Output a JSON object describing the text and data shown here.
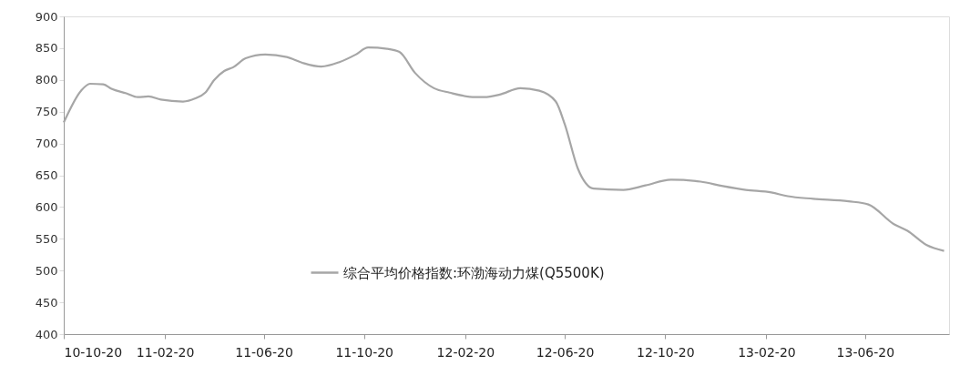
{
  "chart_data": {
    "type": "line",
    "x": [
      "2010-10-20",
      "2010-11-10",
      "2010-11-21",
      "2010-12-07",
      "2010-12-17",
      "2011-01-04",
      "2011-01-18",
      "2011-01-31",
      "2011-02-15",
      "2011-03-14",
      "2011-03-29",
      "2011-04-10",
      "2011-04-21",
      "2011-05-03",
      "2011-05-14",
      "2011-05-29",
      "2011-06-22",
      "2011-07-18",
      "2011-08-06",
      "2011-08-29",
      "2011-09-20",
      "2011-10-10",
      "2011-10-25",
      "2011-11-17",
      "2011-12-02",
      "2011-12-21",
      "2012-01-13",
      "2012-02-01",
      "2012-03-03",
      "2012-03-14",
      "2012-04-02",
      "2012-04-27",
      "2012-05-20",
      "2012-06-09",
      "2012-06-20",
      "2012-07-06",
      "2012-07-25",
      "2012-08-30",
      "2012-09-26",
      "2012-10-27",
      "2012-12-02",
      "2012-12-29",
      "2013-01-26",
      "2013-02-26",
      "2013-03-18",
      "2013-04-18",
      "2013-05-31",
      "2013-06-24",
      "2013-07-25",
      "2013-08-10",
      "2013-09-03",
      "2013-09-24"
    ],
    "series": [
      {
        "name": "综合平均价格指数:环渤海动力煤(Q5500K)",
        "color": "#a6a6a6",
        "values": [
          733,
          783,
          794,
          793,
          786,
          779,
          773,
          774,
          769,
          766,
          771,
          780,
          800,
          814,
          820,
          834,
          840,
          836,
          827,
          821,
          828,
          840,
          851,
          849,
          844,
          811,
          787,
          780,
          773,
          773,
          777,
          787,
          783,
          766,
          730,
          660,
          629,
          627,
          634,
          643,
          640,
          633,
          627,
          623,
          617,
          613,
          609,
          604,
          573,
          563,
          540,
          531
        ]
      }
    ],
    "xlim": [
      "2010-10-20",
      "2013-09-30"
    ],
    "xticks": [
      {
        "value": "2010-10-20",
        "label": "10-10-20"
      },
      {
        "value": "2011-02-20",
        "label": "11-02-20"
      },
      {
        "value": "2011-06-20",
        "label": "11-06-20"
      },
      {
        "value": "2011-10-20",
        "label": "11-10-20"
      },
      {
        "value": "2012-02-20",
        "label": "12-02-20"
      },
      {
        "value": "2012-06-20",
        "label": "12-06-20"
      },
      {
        "value": "2012-10-20",
        "label": "12-10-20"
      },
      {
        "value": "2013-02-20",
        "label": "13-02-20"
      },
      {
        "value": "2013-06-20",
        "label": "13-06-20"
      }
    ],
    "ylim": [
      400,
      900
    ],
    "yticks": [
      400,
      450,
      500,
      550,
      600,
      650,
      700,
      750,
      800,
      850,
      900
    ],
    "grid": false,
    "legend": "bottom",
    "marker": "none",
    "line_style": "solid"
  }
}
